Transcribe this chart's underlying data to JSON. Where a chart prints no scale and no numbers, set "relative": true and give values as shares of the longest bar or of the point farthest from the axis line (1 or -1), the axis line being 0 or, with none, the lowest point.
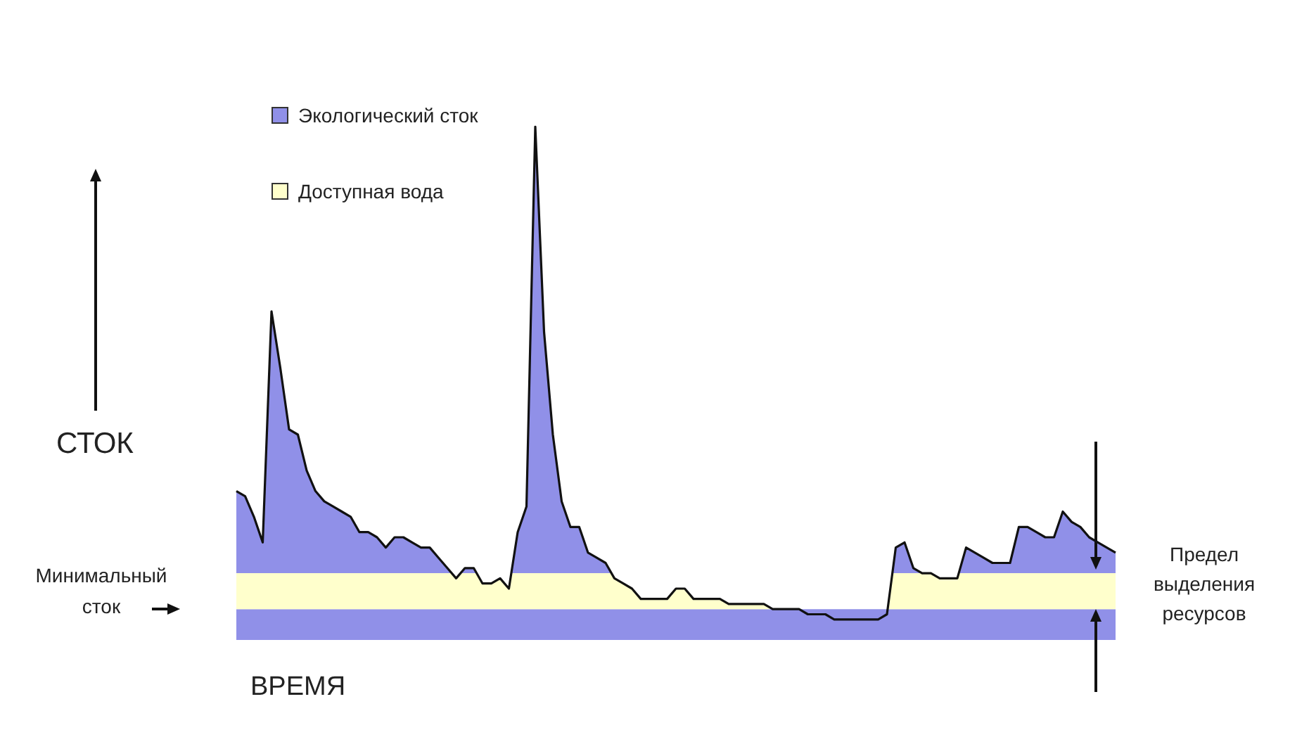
{
  "chart_data": {
    "type": "area",
    "relative": true,
    "xlabel": "ВРЕМЯ",
    "ylabel": "СТОК",
    "categories": [
      null,
      null,
      null,
      null,
      null,
      null,
      null,
      null,
      null,
      null,
      null,
      null,
      null,
      null,
      null,
      null,
      null,
      null,
      null,
      null,
      null,
      null,
      null,
      null,
      null,
      null,
      null,
      null,
      null,
      null,
      null,
      null,
      null,
      null,
      null,
      null,
      null,
      null,
      null,
      null,
      null,
      null,
      null,
      null,
      null,
      null,
      null,
      null,
      null,
      null,
      null,
      null,
      null,
      null,
      null,
      null,
      null,
      null,
      null,
      null,
      null,
      null,
      null,
      null,
      null,
      null,
      null,
      null,
      null,
      null,
      null,
      null,
      null,
      null,
      null,
      null,
      null,
      null,
      null,
      null,
      null,
      null,
      null,
      null,
      null,
      null,
      null,
      null,
      null,
      null,
      null,
      null,
      null,
      null,
      null,
      null,
      null,
      null,
      null,
      null,
      null
    ],
    "series": [
      {
        "name": "Экологический сток",
        "color": "#9090e8",
        "values": [
          0.29,
          0.28,
          0.24,
          0.19,
          0.64,
          0.53,
          0.41,
          0.4,
          0.33,
          0.29,
          0.27,
          0.26,
          0.25,
          0.24,
          0.21,
          0.21,
          0.2,
          0.18,
          0.2,
          0.2,
          0.19,
          0.18,
          0.18,
          0.16,
          0.14,
          0.12,
          0.14,
          0.14,
          0.11,
          0.11,
          0.12,
          0.1,
          0.21,
          0.26,
          1,
          0.6,
          0.4,
          0.27,
          0.22,
          0.22,
          0.17,
          0.16,
          0.15,
          0.12,
          0.11,
          0.1,
          0.08,
          0.08,
          0.08,
          0.08,
          0.1,
          0.1,
          0.08,
          0.08,
          0.08,
          0.08,
          0.07,
          0.07,
          0.07,
          0.07,
          0.07,
          0.06,
          0.06,
          0.06,
          0.06,
          0.05,
          0.05,
          0.05,
          0.04,
          0.04,
          0.04,
          0.04,
          0.04,
          0.04,
          0.05,
          0.18,
          0.19,
          0.14,
          0.13,
          0.13,
          0.12,
          0.12,
          0.12,
          0.18,
          0.17,
          0.16,
          0.15,
          0.15,
          0.15,
          0.22,
          0.22,
          0.21,
          0.2,
          0.2,
          0.25,
          0.23,
          0.22,
          0.2,
          0.19,
          0.18,
          0.17
        ]
      }
    ],
    "bands": [
      {
        "axis": "y",
        "from": 0,
        "to": 0.06,
        "color": "#9090e8"
      },
      {
        "axis": "y",
        "from": 0.06,
        "to": 0.13,
        "color": "#ffffcc",
        "label": "Доступная вода"
      }
    ],
    "legend": "top left",
    "annotations": [
      "Минимальный сток",
      "Предел выделения ресурсов"
    ]
  }
}
